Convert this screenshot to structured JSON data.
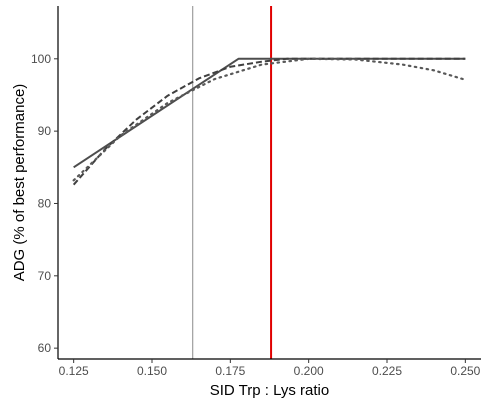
{
  "chart_data": {
    "type": "line",
    "title": "",
    "xlabel": "SID Trp : Lys ratio",
    "ylabel": "ADG (% of best performance)",
    "xlim": [
      0.12,
      0.255
    ],
    "ylim": [
      58.5,
      107.3
    ],
    "x_ticks": [
      {
        "value": 0.125,
        "label": "0.125"
      },
      {
        "value": 0.15,
        "label": "0.150"
      },
      {
        "value": 0.175,
        "label": "0.175"
      },
      {
        "value": 0.2,
        "label": "0.200"
      },
      {
        "value": 0.225,
        "label": "0.225"
      },
      {
        "value": 0.25,
        "label": "0.250"
      }
    ],
    "y_ticks": [
      {
        "value": 60,
        "label": "60"
      },
      {
        "value": 70,
        "label": "70"
      },
      {
        "value": 80,
        "label": "80"
      },
      {
        "value": 90,
        "label": "90"
      },
      {
        "value": 100,
        "label": "100"
      }
    ],
    "grid": false,
    "legend": "none",
    "series": [
      {
        "style": "solid",
        "color": "#4d4d4d",
        "points": [
          [
            0.125,
            85.0
          ],
          [
            0.1776,
            100.0
          ],
          [
            0.25,
            100.0
          ]
        ]
      },
      {
        "style": "dashed",
        "color": "#404040",
        "points": [
          [
            0.125,
            82.6
          ],
          [
            0.135,
            87.5
          ],
          [
            0.145,
            91.6
          ],
          [
            0.155,
            94.9
          ],
          [
            0.165,
            97.3
          ],
          [
            0.175,
            98.9
          ],
          [
            0.185,
            99.6
          ],
          [
            0.193,
            100.0
          ],
          [
            0.25,
            100.0
          ]
        ]
      },
      {
        "style": "dotted",
        "color": "#595959",
        "points": [
          [
            0.125,
            83.2
          ],
          [
            0.14,
            89.4
          ],
          [
            0.155,
            93.9
          ],
          [
            0.17,
            97.2
          ],
          [
            0.185,
            99.2
          ],
          [
            0.2,
            100.0
          ],
          [
            0.215,
            99.9
          ],
          [
            0.23,
            99.2
          ],
          [
            0.24,
            98.4
          ],
          [
            0.25,
            97.1
          ]
        ]
      }
    ],
    "reference_lines": [
      {
        "x": 0.163,
        "color": "#8c8c8c",
        "width": 1
      },
      {
        "x": 0.188,
        "color": "#e00000",
        "width": 2
      }
    ]
  }
}
